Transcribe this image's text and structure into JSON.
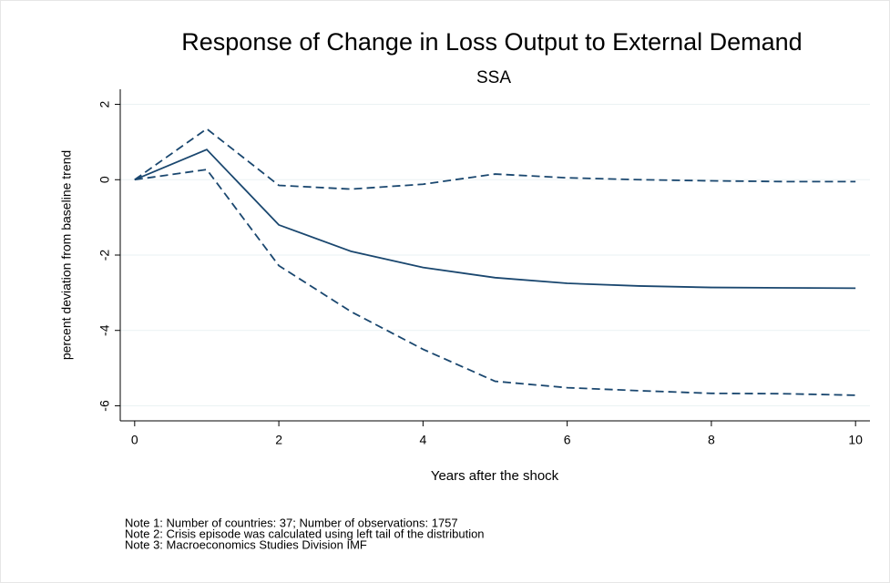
{
  "chart_data": {
    "type": "line",
    "title": "Response of Change in Loss Output to External Demand",
    "subtitle": "SSA",
    "x_label": "Years after the shock",
    "y_label": "percent deviation from baseline trend",
    "x": [
      0,
      1,
      2,
      3,
      4,
      5,
      6,
      7,
      8,
      9,
      10
    ],
    "series": [
      {
        "color": "#1a476f",
        "line_style": "solid",
        "values": [
          0,
          0.8,
          -1.2,
          -1.9,
          -2.33,
          -2.6,
          -2.75,
          -2.82,
          -2.86,
          -2.87,
          -2.88
        ]
      },
      {
        "color": "#1a476f",
        "line_style": "dashed",
        "values": [
          0,
          1.35,
          -0.15,
          -0.25,
          -0.12,
          0.15,
          0.05,
          0.0,
          -0.03,
          -0.05,
          -0.05
        ]
      },
      {
        "color": "#1a476f",
        "line_style": "dashed",
        "values": [
          0,
          0.27,
          -2.28,
          -3.5,
          -4.5,
          -5.35,
          -5.52,
          -5.6,
          -5.67,
          -5.68,
          -5.72
        ]
      }
    ],
    "xlim": [
      -0.2,
      10.2
    ],
    "ylim": [
      -6.4,
      2.4
    ],
    "xticks": [
      0,
      2,
      4,
      6,
      8,
      10
    ],
    "yticks": [
      -6,
      -4,
      -2,
      0,
      2
    ],
    "grid": true,
    "notes": [
      "Note 1: Number of countries: 37; Number of observations: 1757",
      "Note 2: Crisis episode was calculated using left tail of the distribution",
      "Note 3: Macroeconomics Studies Division IMF"
    ]
  }
}
